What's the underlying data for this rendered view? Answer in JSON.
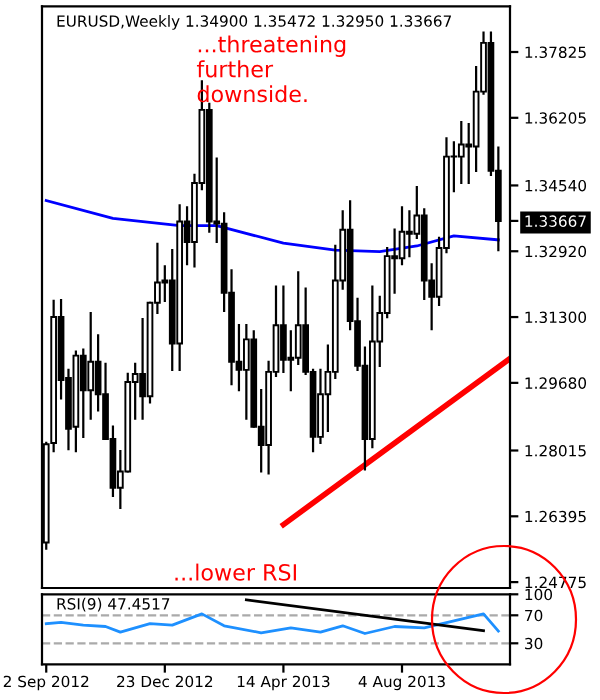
{
  "chart_data": [
    {
      "type": "candlestick",
      "title": "EURUSD,Weekly 1.34900 1.35472 1.32950 1.33667",
      "annotations": [
        "...threatening\nfurther\ndownside.",
        "...lower RSI"
      ],
      "x": [
        "2012-09-02",
        "2012-09-09",
        "2012-09-16",
        "2012-09-23",
        "2012-09-30",
        "2012-10-07",
        "2012-10-14",
        "2012-10-21",
        "2012-10-28",
        "2012-11-04",
        "2012-11-11",
        "2012-11-18",
        "2012-11-25",
        "2012-12-02",
        "2012-12-09",
        "2012-12-16",
        "2012-12-23",
        "2012-12-30",
        "2013-01-06",
        "2013-01-13",
        "2013-01-20",
        "2013-01-27",
        "2013-02-03",
        "2013-02-10",
        "2013-02-17",
        "2013-02-24",
        "2013-03-03",
        "2013-03-10",
        "2013-03-17",
        "2013-03-24",
        "2013-03-31",
        "2013-04-07",
        "2013-04-14",
        "2013-04-21",
        "2013-04-28",
        "2013-05-05",
        "2013-05-12",
        "2013-05-19",
        "2013-05-26",
        "2013-06-02",
        "2013-06-09",
        "2013-06-16",
        "2013-06-23",
        "2013-06-30",
        "2013-07-07",
        "2013-07-14",
        "2013-07-21",
        "2013-07-28",
        "2013-08-04",
        "2013-08-11",
        "2013-08-18",
        "2013-08-25",
        "2013-09-01",
        "2013-09-08",
        "2013-09-15",
        "2013-09-22",
        "2013-09-29",
        "2013-10-06",
        "2013-10-13",
        "2013-10-20",
        "2013-10-27",
        "2013-11-03"
      ],
      "ohlc": [
        [
          1.2575,
          1.282,
          1.256,
          1.2817
        ],
        [
          1.282,
          1.317,
          1.28,
          1.313
        ],
        [
          1.313,
          1.3172,
          1.293,
          1.2975
        ],
        [
          1.298,
          1.3,
          1.2805,
          1.2855
        ],
        [
          1.286,
          1.3045,
          1.28,
          1.3035
        ],
        [
          1.3035,
          1.305,
          1.2835,
          1.295
        ],
        [
          1.295,
          1.314,
          1.288,
          1.302
        ],
        [
          1.302,
          1.3085,
          1.29,
          1.294
        ],
        [
          1.294,
          1.3015,
          1.283,
          1.283
        ],
        [
          1.283,
          1.286,
          1.269,
          1.271
        ],
        [
          1.271,
          1.28,
          1.266,
          1.275
        ],
        [
          1.275,
          1.299,
          1.275,
          1.297
        ],
        [
          1.297,
          1.3015,
          1.288,
          1.299
        ],
        [
          1.299,
          1.3125,
          1.288,
          1.2935
        ],
        [
          1.2935,
          1.3165,
          1.292,
          1.3165
        ],
        [
          1.3165,
          1.331,
          1.314,
          1.3215
        ],
        [
          1.3215,
          1.3255,
          1.317,
          1.322
        ],
        [
          1.322,
          1.3295,
          1.3,
          1.3065
        ],
        [
          1.3065,
          1.3405,
          1.3,
          1.3365
        ],
        [
          1.3365,
          1.34,
          1.326,
          1.3315
        ],
        [
          1.3315,
          1.348,
          1.3255,
          1.346
        ],
        [
          1.346,
          1.371,
          1.3445,
          1.364
        ],
        [
          1.364,
          1.3655,
          1.334,
          1.3365
        ],
        [
          1.3365,
          1.352,
          1.3315,
          1.336
        ],
        [
          1.336,
          1.3385,
          1.3145,
          1.319
        ],
        [
          1.319,
          1.3245,
          1.2965,
          1.302
        ],
        [
          1.302,
          1.311,
          1.295,
          1.3
        ],
        [
          1.3,
          1.311,
          1.288,
          1.3075
        ],
        [
          1.3075,
          1.3095,
          1.286,
          1.286
        ],
        [
          1.286,
          1.295,
          1.275,
          1.2815
        ],
        [
          1.2815,
          1.302,
          1.2745,
          1.2995
        ],
        [
          1.2995,
          1.3205,
          1.2985,
          1.311
        ],
        [
          1.311,
          1.3205,
          1.2995,
          1.3025
        ],
        [
          1.3025,
          1.3095,
          1.295,
          1.303
        ],
        [
          1.303,
          1.324,
          1.3015,
          1.311
        ],
        [
          1.311,
          1.32,
          1.299,
          1.2995
        ],
        [
          1.2995,
          1.3,
          1.28,
          1.2835
        ],
        [
          1.2835,
          1.3,
          1.282,
          1.294
        ],
        [
          1.294,
          1.306,
          1.285,
          1.2995
        ],
        [
          1.2995,
          1.3305,
          1.298,
          1.322
        ],
        [
          1.322,
          1.339,
          1.32,
          1.3345
        ],
        [
          1.3345,
          1.3415,
          1.31,
          1.312
        ],
        [
          1.312,
          1.3175,
          1.3,
          1.301
        ],
        [
          1.301,
          1.3055,
          1.2755,
          1.283
        ],
        [
          1.283,
          1.3205,
          1.281,
          1.307
        ],
        [
          1.307,
          1.318,
          1.301,
          1.314
        ],
        [
          1.314,
          1.33,
          1.313,
          1.328
        ],
        [
          1.328,
          1.3345,
          1.319,
          1.3275
        ],
        [
          1.3275,
          1.34,
          1.326,
          1.334
        ],
        [
          1.334,
          1.339,
          1.328,
          1.3335
        ],
        [
          1.3335,
          1.345,
          1.3325,
          1.338
        ],
        [
          1.338,
          1.3395,
          1.3175,
          1.322
        ],
        [
          1.322,
          1.326,
          1.31,
          1.318
        ],
        [
          1.318,
          1.3325,
          1.316,
          1.33
        ],
        [
          1.33,
          1.357,
          1.329,
          1.3525
        ],
        [
          1.3525,
          1.356,
          1.344,
          1.3525
        ],
        [
          1.3525,
          1.361,
          1.346,
          1.3555
        ],
        [
          1.3555,
          1.3605,
          1.346,
          1.355
        ],
        [
          1.355,
          1.3745,
          1.349,
          1.3685
        ],
        [
          1.3685,
          1.383,
          1.368,
          1.3805
        ],
        [
          1.3805,
          1.383,
          1.348,
          1.349
        ],
        [
          1.349,
          1.35472,
          1.3295,
          1.33667
        ]
      ],
      "series": [
        {
          "type": "line",
          "color": "#0000ff",
          "x": [
            "2012-09-02",
            "2012-11-04",
            "2013-01-06",
            "2013-02-10",
            "2013-04-14",
            "2013-06-02",
            "2013-07-14",
            "2013-08-18",
            "2013-09-22",
            "2013-11-03"
          ],
          "values": [
            1.3417,
            1.3373,
            1.3355,
            1.3355,
            1.3312,
            1.3295,
            1.3291,
            1.3305,
            1.333,
            1.332
          ]
        },
        {
          "type": "line",
          "color": "#ff0000",
          "x": [
            "2013-04-14",
            "2013-11-14"
          ],
          "values": [
            1.2619,
            1.3028
          ]
        }
      ],
      "xlim": [
        "2012-08-29",
        "2013-11-14"
      ],
      "ylim": [
        1.2463,
        1.3895
      ],
      "yticks": [
        {
          "value": 1.24775,
          "label": "1.24775"
        },
        {
          "value": 1.26395,
          "label": "1.26395"
        },
        {
          "value": 1.28015,
          "label": "1.28015"
        },
        {
          "value": 1.2968,
          "label": "1.29680"
        },
        {
          "value": 1.313,
          "label": "1.31300"
        },
        {
          "value": 1.3292,
          "label": "1.32920"
        },
        {
          "value": 1.33667,
          "label": "1.33667"
        },
        {
          "value": 1.3454,
          "label": "1.34540"
        },
        {
          "value": 1.36205,
          "label": "1.36205"
        },
        {
          "value": 1.37825,
          "label": "1.37825"
        }
      ],
      "tick_labels": "y",
      "grid": false,
      "legend": false
    },
    {
      "type": "line",
      "title": "RSI(9) 47.4517",
      "series": [
        {
          "color": "#1e90ff",
          "x": [
            "2012-09-02",
            "2012-09-16",
            "2012-10-07",
            "2012-10-28",
            "2012-11-11",
            "2012-12-09",
            "2012-12-30",
            "2013-01-27",
            "2013-02-17",
            "2013-03-24",
            "2013-04-21",
            "2013-05-19",
            "2013-06-09",
            "2013-06-30",
            "2013-07-28",
            "2013-08-25",
            "2013-09-22",
            "2013-10-20",
            "2013-11-03"
          ],
          "values": [
            58,
            60,
            56,
            54,
            46,
            58,
            56,
            72,
            55,
            45,
            52,
            46,
            55,
            44,
            54,
            52,
            62,
            72,
            47.45
          ]
        },
        {
          "color": "#000000",
          "x": [
            "2013-03-10",
            "2013-10-20"
          ],
          "values": [
            92,
            48
          ]
        }
      ],
      "xlim": [
        "2012-08-29",
        "2013-11-14"
      ],
      "ylim": [
        0,
        100
      ],
      "xticks": [
        {
          "value": "2012-09-02",
          "label": "2 Sep 2012"
        },
        {
          "value": "2012-12-23",
          "label": "23 Dec 2012"
        },
        {
          "value": "2013-04-14",
          "label": "14 Apr 2013"
        },
        {
          "value": "2013-08-04",
          "label": "4 Aug 2013"
        }
      ],
      "yticks": [
        30,
        70,
        100
      ],
      "ref_lines": [
        {
          "axis": "y",
          "value": 70,
          "color": "#aaaaaa",
          "line_style": "dashed"
        },
        {
          "axis": "y",
          "value": 30,
          "color": "#aaaaaa",
          "line_style": "dashed"
        }
      ],
      "grid": false,
      "legend": false
    }
  ]
}
